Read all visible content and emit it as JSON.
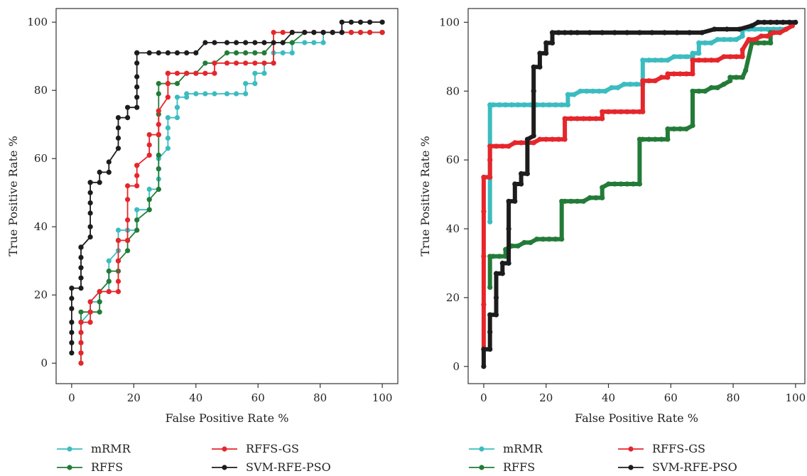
{
  "colors": {
    "mRMR": "#3bbcc0",
    "RFFS": "#237b38",
    "RFFS-GS": "#e5262b",
    "SVM-RFE-PSO": "#1c1c1c"
  },
  "chart_data": [
    {
      "type": "line",
      "title": "",
      "xlabel": "False Positive Rate %",
      "ylabel": "True Positive Rate %",
      "xlim": [
        -5,
        105
      ],
      "ylim": [
        -6,
        104
      ],
      "xticks": [
        "0",
        "20",
        "40",
        "60",
        "80",
        "100"
      ],
      "yticks": [
        "0",
        "20",
        "40",
        "60",
        "80",
        "100"
      ],
      "grid": false,
      "legend": "bottom",
      "legend_labels": [
        "mRMR",
        "RFFS-GS",
        "RFFS",
        "SVM-RFE-PSO"
      ],
      "series": [
        {
          "name": "mRMR",
          "color": "#3bbcc0",
          "x": [
            3,
            3,
            3,
            3,
            3,
            6,
            6,
            9,
            9,
            12,
            12,
            12,
            12,
            15,
            15,
            15,
            15,
            18,
            18,
            21,
            21,
            21,
            25,
            25,
            25,
            28,
            28,
            28,
            28,
            31,
            31,
            31,
            31,
            34,
            34,
            34,
            34,
            37,
            37,
            40,
            43,
            46,
            50,
            53,
            56,
            56,
            59,
            59,
            62,
            62,
            65,
            65,
            68,
            71,
            71,
            75,
            78,
            81,
            81,
            84,
            87,
            90,
            93,
            96,
            100
          ],
          "y": [
            0,
            3,
            6,
            9,
            12,
            15,
            18,
            18,
            21,
            21,
            24,
            27,
            30,
            33,
            36,
            36,
            39,
            39,
            39,
            39,
            42,
            45,
            45,
            48,
            51,
            51,
            54,
            57,
            60,
            63,
            66,
            69,
            72,
            72,
            75,
            75,
            78,
            78,
            79,
            79,
            79,
            79,
            79,
            79,
            79,
            82,
            82,
            85,
            85,
            88,
            88,
            91,
            91,
            91,
            94,
            94,
            94,
            94,
            97,
            97,
            97,
            97,
            97,
            97,
            97
          ]
        },
        {
          "name": "RFFS",
          "color": "#237b38",
          "x": [
            3,
            3,
            6,
            9,
            9,
            9,
            12,
            12,
            15,
            15,
            18,
            18,
            21,
            21,
            25,
            25,
            28,
            28,
            28,
            28,
            28,
            28,
            28,
            31,
            34,
            37,
            40,
            43,
            46,
            50,
            53,
            56,
            59,
            62,
            65,
            68,
            71,
            75,
            78,
            81,
            84,
            87,
            90,
            93,
            96,
            100,
            100
          ],
          "y": [
            12,
            15,
            15,
            15,
            18,
            21,
            24,
            27,
            27,
            30,
            33,
            36,
            39,
            42,
            45,
            48,
            51,
            57,
            61,
            67,
            73,
            79,
            82,
            82,
            82,
            85,
            85,
            88,
            88,
            91,
            91,
            91,
            91,
            91,
            94,
            94,
            94,
            97,
            97,
            97,
            97,
            97,
            97,
            97,
            97,
            97,
            97
          ]
        },
        {
          "name": "RFFS-GS",
          "color": "#e5262b",
          "x": [
            3,
            3,
            3,
            3,
            3,
            6,
            6,
            6,
            9,
            12,
            15,
            15,
            15,
            15,
            18,
            18,
            18,
            18,
            21,
            21,
            21,
            21,
            25,
            25,
            25,
            28,
            28,
            28,
            28,
            31,
            31,
            31,
            31,
            34,
            37,
            40,
            43,
            46,
            46,
            50,
            53,
            56,
            59,
            62,
            65,
            65,
            68,
            71,
            75,
            78,
            81,
            84,
            87,
            90,
            93,
            96,
            100
          ],
          "y": [
            0,
            3,
            6,
            9,
            12,
            12,
            15,
            18,
            21,
            21,
            21,
            24,
            30,
            36,
            36,
            42,
            48,
            52,
            52,
            55,
            58,
            58,
            61,
            64,
            67,
            67,
            67,
            70,
            74,
            78,
            82,
            85,
            85,
            85,
            85,
            85,
            85,
            85,
            88,
            88,
            88,
            88,
            88,
            88,
            88,
            97,
            97,
            97,
            97,
            97,
            97,
            97,
            97,
            97,
            97,
            97,
            97
          ]
        },
        {
          "name": "SVM-RFE-PSO",
          "color": "#1c1c1c",
          "x": [
            0,
            0,
            0,
            0,
            0,
            0,
            0,
            3,
            3,
            3,
            3,
            3,
            3,
            3,
            6,
            6,
            6,
            6,
            6,
            6,
            6,
            9,
            9,
            12,
            12,
            15,
            15,
            15,
            15,
            18,
            18,
            21,
            21,
            21,
            21,
            21,
            21,
            21,
            25,
            28,
            31,
            34,
            37,
            40,
            43,
            46,
            50,
            53,
            56,
            59,
            62,
            65,
            68,
            71,
            75,
            78,
            81,
            84,
            87,
            87,
            90,
            93,
            96,
            100
          ],
          "y": [
            3,
            6,
            9,
            12,
            16,
            19,
            22,
            22,
            25,
            28,
            31,
            34,
            34,
            34,
            37,
            40,
            44,
            47,
            50,
            53,
            53,
            53,
            56,
            56,
            59,
            63,
            66,
            69,
            72,
            72,
            75,
            75,
            78,
            81,
            84,
            88,
            91,
            91,
            91,
            91,
            91,
            91,
            91,
            91,
            94,
            94,
            94,
            94,
            94,
            94,
            94,
            94,
            94,
            97,
            97,
            97,
            97,
            97,
            97,
            100,
            100,
            100,
            100,
            100
          ]
        }
      ]
    },
    {
      "type": "line",
      "title": "",
      "xlabel": "False Positive Rate %",
      "ylabel": "True Positive Rate %",
      "xlim": [
        -5,
        103
      ],
      "ylim": [
        -5,
        104
      ],
      "xticks": [
        "0",
        "20",
        "40",
        "60",
        "80",
        "100"
      ],
      "yticks": [
        "0",
        "20",
        "40",
        "60",
        "80",
        "100"
      ],
      "grid": false,
      "legend": "bottom",
      "legend_labels": [
        "mRMR",
        "RFFS-GS",
        "RFFS",
        "SVM-RFE-PSO"
      ],
      "series": [
        {
          "name": "mRMR",
          "color": "#3bbcc0",
          "x": [
            2,
            2,
            2,
            3,
            5,
            7,
            9,
            11,
            13,
            15,
            17,
            19,
            21,
            23,
            25,
            27,
            27,
            29,
            31,
            33,
            35,
            37,
            39,
            41,
            43,
            45,
            47,
            49,
            51,
            51,
            53,
            55,
            57,
            59,
            61,
            63,
            65,
            67,
            67,
            69,
            69,
            71,
            73,
            75,
            77,
            79,
            81,
            83,
            83,
            85,
            87,
            89,
            91,
            93,
            95,
            97,
            99
          ],
          "y": [
            42,
            60,
            76,
            76,
            76,
            76,
            76,
            76,
            76,
            76,
            76,
            76,
            76,
            76,
            76,
            76,
            79,
            79,
            80,
            80,
            80,
            80,
            80,
            81,
            81,
            82,
            82,
            82,
            82,
            89,
            89,
            89,
            89,
            89,
            90,
            90,
            90,
            90,
            91,
            91,
            94,
            94,
            94,
            95,
            95,
            95,
            95,
            96,
            98,
            98,
            98,
            98,
            98,
            98,
            98,
            98,
            99
          ]
        },
        {
          "name": "RFFS",
          "color": "#237b38",
          "x": [
            2,
            2,
            3,
            5,
            7,
            7,
            9,
            11,
            13,
            15,
            17,
            19,
            21,
            23,
            25,
            25,
            26,
            28,
            30,
            32,
            34,
            36,
            38,
            38,
            40,
            42,
            44,
            46,
            48,
            50,
            50,
            51,
            53,
            55,
            57,
            59,
            59,
            61,
            63,
            65,
            67,
            67,
            69,
            71,
            73,
            75,
            77,
            79,
            79,
            81,
            83,
            84,
            86,
            88,
            90,
            92,
            92
          ],
          "y": [
            23,
            32,
            32,
            32,
            32,
            34,
            35,
            35,
            36,
            36,
            37,
            37,
            37,
            37,
            37,
            48,
            48,
            48,
            48,
            48,
            49,
            49,
            49,
            52,
            53,
            53,
            53,
            53,
            53,
            53,
            66,
            66,
            66,
            66,
            66,
            66,
            69,
            69,
            69,
            69,
            70,
            80,
            80,
            80,
            81,
            81,
            82,
            83,
            84,
            84,
            84,
            86,
            94,
            94,
            94,
            94,
            97
          ]
        },
        {
          "name": "RFFS-GS",
          "color": "#e5262b",
          "x": [
            0,
            0,
            0,
            0,
            0,
            2,
            2,
            2,
            4,
            6,
            8,
            10,
            12,
            14,
            16,
            18,
            20,
            22,
            24,
            26,
            26,
            28,
            30,
            32,
            34,
            36,
            38,
            38,
            40,
            42,
            44,
            46,
            48,
            50,
            51,
            51,
            53,
            55,
            57,
            59,
            59,
            61,
            63,
            65,
            67,
            67,
            69,
            71,
            73,
            75,
            77,
            79,
            81,
            83,
            83,
            85,
            87,
            89,
            91,
            93,
            95,
            97,
            99
          ],
          "y": [
            5,
            18,
            32,
            45,
            55,
            55,
            60,
            64,
            64,
            64,
            64,
            65,
            65,
            65,
            65,
            66,
            66,
            66,
            66,
            66,
            72,
            72,
            72,
            72,
            72,
            72,
            72,
            74,
            74,
            74,
            74,
            74,
            74,
            74,
            74,
            83,
            83,
            83,
            84,
            84,
            85,
            85,
            85,
            85,
            85,
            89,
            89,
            89,
            89,
            89,
            90,
            90,
            90,
            90,
            92,
            95,
            95,
            96,
            96,
            97,
            97,
            98,
            99
          ]
        },
        {
          "name": "SVM-RFE-PSO",
          "color": "#1c1c1c",
          "x": [
            0,
            0,
            2,
            2,
            2,
            4,
            4,
            4,
            6,
            6,
            8,
            8,
            8,
            10,
            10,
            12,
            12,
            14,
            14,
            16,
            16,
            16,
            18,
            18,
            20,
            20,
            22,
            22,
            24,
            26,
            28,
            30,
            34,
            38,
            42,
            46,
            50,
            54,
            58,
            62,
            66,
            70,
            74,
            78,
            82,
            86,
            88,
            90,
            92,
            94,
            96,
            98,
            100
          ],
          "y": [
            0,
            5,
            5,
            10,
            15,
            15,
            20,
            27,
            27,
            30,
            30,
            40,
            48,
            48,
            53,
            53,
            56,
            56,
            66,
            67,
            80,
            87,
            87,
            91,
            91,
            94,
            94,
            97,
            97,
            97,
            97,
            97,
            97,
            97,
            97,
            97,
            97,
            97,
            97,
            97,
            97,
            97,
            98,
            98,
            98,
            99,
            100,
            100,
            100,
            100,
            100,
            100,
            100
          ]
        }
      ]
    }
  ]
}
